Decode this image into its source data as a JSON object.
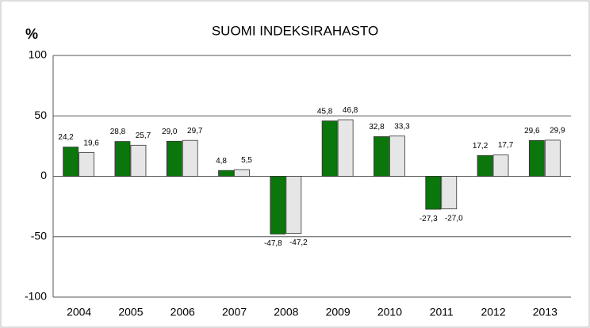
{
  "chart_data": {
    "type": "bar",
    "title": "SUOMI INDEKSIRAHASTO",
    "y_label": "%",
    "categories": [
      "2004",
      "2005",
      "2006",
      "2007",
      "2008",
      "2009",
      "2010",
      "2011",
      "2012",
      "2013"
    ],
    "series": [
      {
        "color": "#0b760b",
        "values": [
          24.2,
          28.8,
          29.0,
          4.8,
          -47.8,
          45.8,
          32.8,
          -27.3,
          17.2,
          29.6
        ],
        "value_labels": [
          "24,2",
          "28,8",
          "29,0",
          "4,8",
          "-47,8",
          "45,8",
          "32,8",
          "-27,3",
          "17,2",
          "29,6"
        ]
      },
      {
        "color": "#e6e6e6",
        "values": [
          19.6,
          25.7,
          29.7,
          5.5,
          -47.2,
          46.8,
          33.3,
          -27.0,
          17.7,
          29.9
        ],
        "value_labels": [
          "19,6",
          "25,7",
          "29,7",
          "5,5",
          "-47,2",
          "46,8",
          "33,3",
          "-27,0",
          "17,7",
          "29,9"
        ]
      }
    ],
    "ylim": [
      -100,
      100
    ],
    "yticks": [
      -100,
      -50,
      0,
      50,
      100
    ],
    "grid": true
  }
}
